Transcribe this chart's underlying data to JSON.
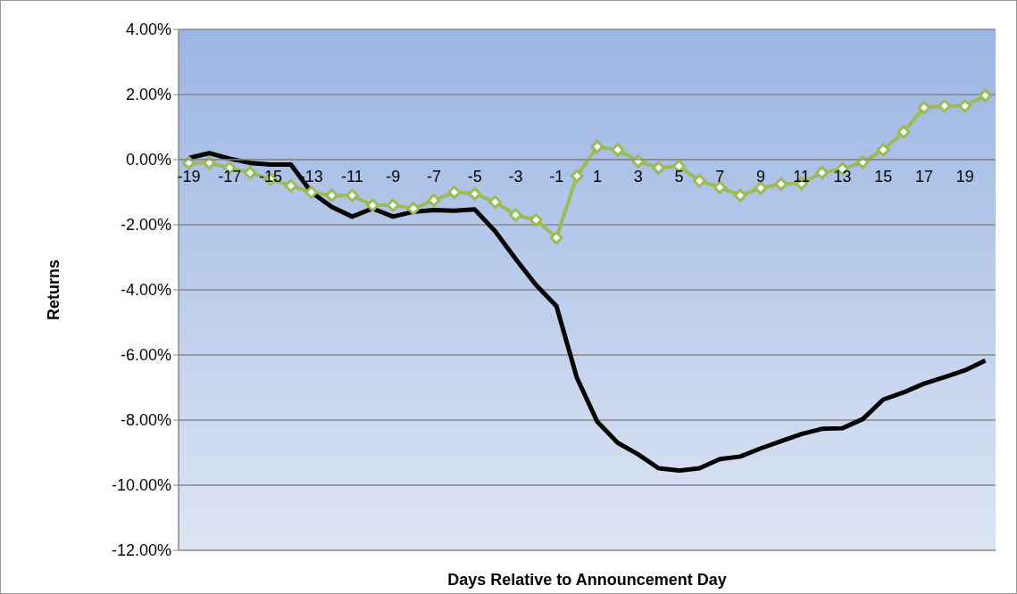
{
  "chart_data": {
    "type": "line",
    "xlabel": "Days Relative to Announcement Day",
    "ylabel": "Returns",
    "x": [
      -19,
      -18,
      -17,
      -16,
      -15,
      -14,
      -13,
      -12,
      -11,
      -10,
      -9,
      -8,
      -7,
      -6,
      -5,
      -4,
      -3,
      -2,
      -1,
      0,
      1,
      2,
      3,
      4,
      5,
      6,
      7,
      8,
      9,
      10,
      11,
      12,
      13,
      14,
      15,
      16,
      17,
      18,
      19,
      20
    ],
    "xlim": [
      -19.5,
      20.5
    ],
    "xticks": [
      -19,
      -17,
      -15,
      -13,
      -11,
      -9,
      -7,
      -5,
      -3,
      -1,
      1,
      3,
      5,
      7,
      9,
      11,
      13,
      15,
      17,
      19
    ],
    "series": [
      {
        "color": "#9bbb59",
        "marker": "diamond",
        "values": [
          -0.1,
          -0.1,
          -0.25,
          -0.4,
          -0.6,
          -0.8,
          -1.0,
          -1.1,
          -1.1,
          -1.4,
          -1.4,
          -1.5,
          -1.25,
          -1.0,
          -1.05,
          -1.3,
          -1.7,
          -1.85,
          -2.4,
          -0.5,
          0.4,
          0.3,
          -0.05,
          -0.25,
          -0.2,
          -0.65,
          -0.85,
          -1.1,
          -0.87,
          -0.75,
          -0.73,
          -0.4,
          -0.28,
          -0.08,
          0.3,
          0.85,
          1.6,
          1.65,
          1.65,
          1.97
        ]
      },
      {
        "color": "#000000",
        "marker": "none",
        "values": [
          0.05,
          0.2,
          0.03,
          -0.1,
          -0.15,
          -0.15,
          -1.0,
          -1.45,
          -1.75,
          -1.5,
          -1.75,
          -1.6,
          -1.55,
          -1.57,
          -1.53,
          -2.2,
          -3.05,
          -3.85,
          -4.5,
          -6.7,
          -8.05,
          -8.7,
          -9.05,
          -9.48,
          -9.55,
          -9.48,
          -9.2,
          -9.12,
          -8.87,
          -8.65,
          -8.43,
          -8.27,
          -8.25,
          -7.97,
          -7.37,
          -7.15,
          -6.88,
          -6.68,
          -6.47,
          -6.17
        ]
      }
    ],
    "ylim": [
      -12,
      4
    ],
    "yticks": [
      {
        "value": -12,
        "label": "-12.00%"
      },
      {
        "value": -10,
        "label": "-10.00%"
      },
      {
        "value": -8,
        "label": "-8.00%"
      },
      {
        "value": -6,
        "label": "-6.00%"
      },
      {
        "value": -4,
        "label": "-4.00%"
      },
      {
        "value": -2,
        "label": "-2.00%"
      },
      {
        "value": 0,
        "label": "0.00%"
      },
      {
        "value": 2,
        "label": "2.00%"
      },
      {
        "value": 4,
        "label": "4.00%"
      }
    ],
    "grid": "y",
    "legend": false
  }
}
